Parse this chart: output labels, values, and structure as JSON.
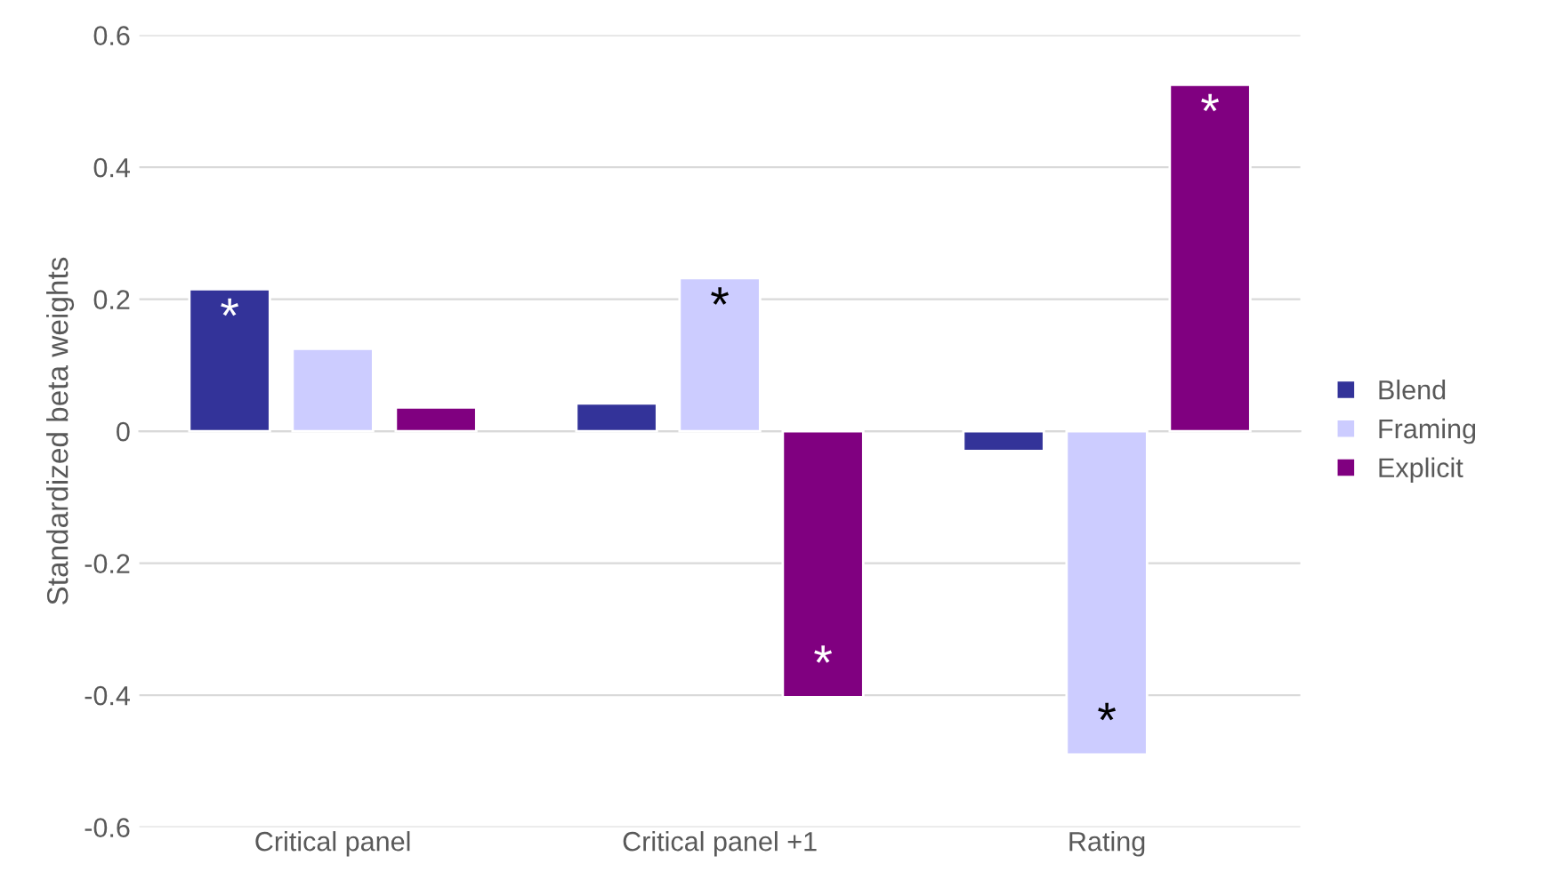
{
  "chart_data": {
    "type": "bar",
    "ylabel": "Standardized beta weights",
    "categories": [
      "Critical panel",
      "Critical panel +1",
      "Rating"
    ],
    "series": [
      {
        "name": "Blend",
        "color": "#333399",
        "values": [
          0.215,
          0.042,
          -0.03
        ],
        "value_labels": [
          "*",
          null,
          null
        ]
      },
      {
        "name": "Framing",
        "color": "#ccccff",
        "values": [
          0.125,
          0.232,
          -0.49
        ],
        "value_labels": [
          null,
          "*",
          "*"
        ]
      },
      {
        "name": "Explicit",
        "color": "#800080",
        "values": [
          0.036,
          -0.403,
          0.525
        ],
        "value_labels": [
          null,
          "*",
          "*"
        ]
      }
    ],
    "ylim": [
      -0.6,
      0.6
    ],
    "yticks": [
      -0.6,
      -0.4,
      -0.2,
      0,
      0.2,
      0.4,
      0.6
    ],
    "grid": "y",
    "legend": "right"
  }
}
